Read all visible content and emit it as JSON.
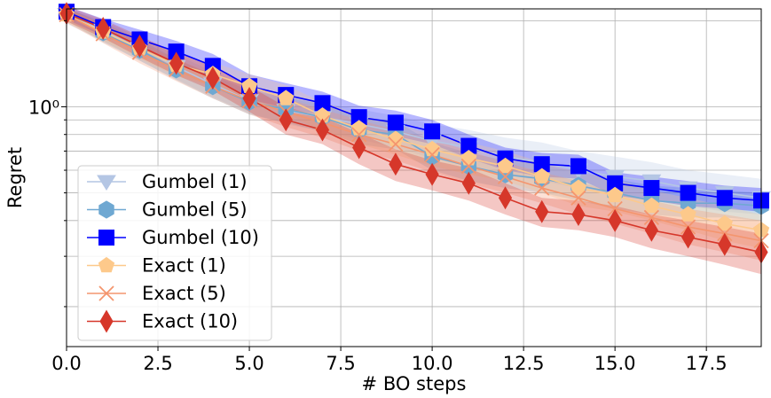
{
  "chart_data": {
    "type": "line",
    "title": "",
    "xlabel": "# BO steps",
    "ylabel": "Regret",
    "xlim": [
      0,
      19
    ],
    "ylim": [
      0.145,
      2.2
    ],
    "yscale": "log",
    "grid": true,
    "legend_position": "lower-left",
    "x_ticks": [
      0,
      2.5,
      5,
      7.5,
      10,
      12.5,
      15,
      17.5
    ],
    "x_tick_labels": [
      "0.0",
      "2.5",
      "5.0",
      "7.5",
      "10.0",
      "12.5",
      "15.0",
      "17.5"
    ],
    "y_major_ticks": [
      1
    ],
    "y_major_tick_labels": [
      "10⁰"
    ],
    "y_minor_ticks": [
      0.2,
      0.3,
      0.4,
      0.5,
      0.6,
      0.7,
      0.8,
      0.9,
      2
    ],
    "x": [
      0,
      1,
      2,
      3,
      4,
      5,
      6,
      7,
      8,
      9,
      10,
      11,
      12,
      13,
      14,
      15,
      16,
      17,
      18,
      19
    ],
    "series": [
      {
        "name": "Gumbel (1)",
        "color": "#b4c6e4",
        "marker": "triangle-down",
        "values": [
          2.1,
          1.85,
          1.6,
          1.38,
          1.2,
          1.05,
          0.97,
          0.92,
          0.87,
          0.82,
          0.76,
          0.72,
          0.67,
          0.64,
          0.6,
          0.57,
          0.55,
          0.52,
          0.5,
          0.48
        ],
        "band_lower": [
          1.95,
          1.7,
          1.45,
          1.25,
          1.08,
          0.95,
          0.87,
          0.82,
          0.77,
          0.72,
          0.66,
          0.62,
          0.58,
          0.55,
          0.52,
          0.49,
          0.47,
          0.45,
          0.43,
          0.42
        ],
        "band_upper": [
          2.2,
          2.0,
          1.75,
          1.52,
          1.33,
          1.17,
          1.08,
          1.03,
          0.98,
          0.93,
          0.87,
          0.83,
          0.78,
          0.75,
          0.7,
          0.67,
          0.64,
          0.6,
          0.58,
          0.56
        ]
      },
      {
        "name": "Gumbel (5)",
        "color": "#6fa8d2",
        "marker": "hexagon",
        "values": [
          2.12,
          1.82,
          1.58,
          1.35,
          1.18,
          1.04,
          0.98,
          0.92,
          0.83,
          0.8,
          0.67,
          0.62,
          0.58,
          0.56,
          0.53,
          0.5,
          0.47,
          0.46,
          0.46,
          0.45
        ],
        "band_lower": [
          2.0,
          1.68,
          1.45,
          1.24,
          1.07,
          0.94,
          0.88,
          0.82,
          0.74,
          0.71,
          0.6,
          0.55,
          0.52,
          0.5,
          0.47,
          0.44,
          0.42,
          0.41,
          0.41,
          0.4
        ],
        "band_upper": [
          2.22,
          1.96,
          1.72,
          1.47,
          1.29,
          1.14,
          1.08,
          1.02,
          0.92,
          0.89,
          0.75,
          0.69,
          0.65,
          0.63,
          0.59,
          0.56,
          0.53,
          0.52,
          0.51,
          0.5
        ]
      },
      {
        "name": "Gumbel (10)",
        "color": "#0000ff",
        "marker": "square",
        "values": [
          2.15,
          1.9,
          1.72,
          1.56,
          1.39,
          1.18,
          1.1,
          1.03,
          0.92,
          0.88,
          0.82,
          0.73,
          0.66,
          0.63,
          0.62,
          0.54,
          0.52,
          0.5,
          0.48,
          0.47
        ],
        "band_lower": [
          2.02,
          1.77,
          1.58,
          1.42,
          1.25,
          1.06,
          0.99,
          0.93,
          0.83,
          0.79,
          0.74,
          0.66,
          0.6,
          0.57,
          0.56,
          0.49,
          0.47,
          0.45,
          0.44,
          0.43
        ],
        "band_upper": [
          2.25,
          2.03,
          1.86,
          1.7,
          1.53,
          1.3,
          1.21,
          1.13,
          1.01,
          0.97,
          0.9,
          0.8,
          0.72,
          0.69,
          0.68,
          0.59,
          0.57,
          0.55,
          0.53,
          0.52
        ]
      },
      {
        "name": "Exact (1)",
        "color": "#fdc98b",
        "marker": "pentagon",
        "values": [
          2.1,
          1.83,
          1.6,
          1.4,
          1.3,
          1.18,
          1.07,
          0.93,
          0.84,
          0.77,
          0.71,
          0.66,
          0.62,
          0.57,
          0.52,
          0.49,
          0.45,
          0.42,
          0.39,
          0.37
        ],
        "band_lower": [
          1.97,
          1.7,
          1.47,
          1.28,
          1.18,
          1.06,
          0.95,
          0.82,
          0.74,
          0.68,
          0.62,
          0.58,
          0.55,
          0.5,
          0.45,
          0.43,
          0.4,
          0.37,
          0.34,
          0.32
        ],
        "band_upper": [
          2.2,
          1.95,
          1.73,
          1.53,
          1.43,
          1.3,
          1.19,
          1.04,
          0.94,
          0.87,
          0.8,
          0.75,
          0.7,
          0.64,
          0.59,
          0.56,
          0.51,
          0.48,
          0.45,
          0.42
        ]
      },
      {
        "name": "Exact (5)",
        "color": "#f4956e",
        "marker": "x",
        "values": [
          2.1,
          1.8,
          1.55,
          1.35,
          1.18,
          1.05,
          0.96,
          0.88,
          0.8,
          0.74,
          0.68,
          0.62,
          0.57,
          0.52,
          0.48,
          0.44,
          0.41,
          0.38,
          0.36,
          0.34
        ],
        "band_lower": [
          1.97,
          1.67,
          1.42,
          1.23,
          1.07,
          0.94,
          0.85,
          0.78,
          0.7,
          0.65,
          0.59,
          0.54,
          0.5,
          0.46,
          0.42,
          0.39,
          0.36,
          0.33,
          0.31,
          0.29
        ],
        "band_upper": [
          2.22,
          1.93,
          1.68,
          1.47,
          1.3,
          1.16,
          1.07,
          0.98,
          0.9,
          0.83,
          0.77,
          0.7,
          0.64,
          0.59,
          0.55,
          0.5,
          0.47,
          0.44,
          0.42,
          0.4
        ]
      },
      {
        "name": "Exact (10)",
        "color": "#d6372a",
        "marker": "thin-diamond",
        "values": [
          2.12,
          1.88,
          1.63,
          1.42,
          1.26,
          1.07,
          0.9,
          0.83,
          0.72,
          0.63,
          0.58,
          0.54,
          0.48,
          0.43,
          0.42,
          0.4,
          0.37,
          0.35,
          0.33,
          0.31
        ],
        "band_lower": [
          1.99,
          1.74,
          1.49,
          1.29,
          1.14,
          0.96,
          0.8,
          0.74,
          0.63,
          0.55,
          0.51,
          0.47,
          0.42,
          0.38,
          0.37,
          0.35,
          0.32,
          0.3,
          0.28,
          0.26
        ],
        "band_upper": [
          2.25,
          2.02,
          1.77,
          1.55,
          1.38,
          1.18,
          1.0,
          0.92,
          0.81,
          0.71,
          0.65,
          0.61,
          0.54,
          0.48,
          0.47,
          0.45,
          0.42,
          0.4,
          0.38,
          0.36
        ]
      }
    ]
  }
}
